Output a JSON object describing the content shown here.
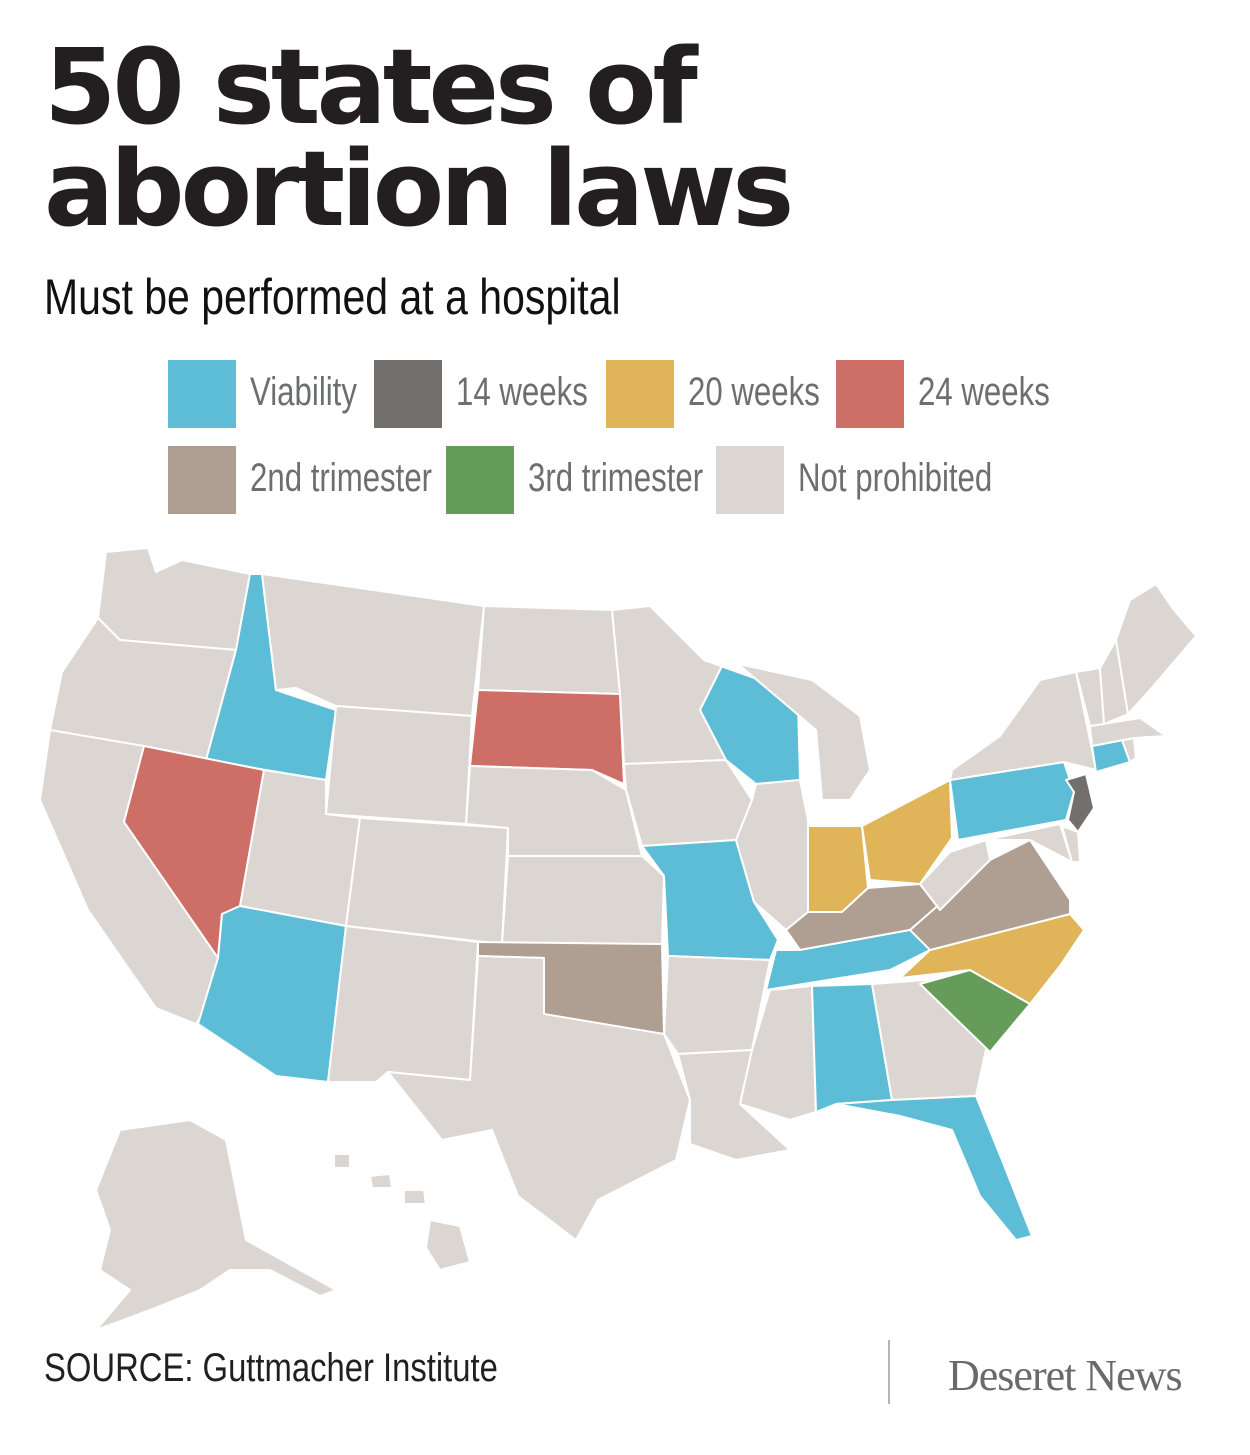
{
  "title_line1": "50 states of",
  "title_line2": "abortion laws",
  "subtitle": "Must be performed at a hospital",
  "legend": [
    {
      "label": "Viability",
      "color": "#5dbdd7"
    },
    {
      "label": "14 weeks",
      "color": "#736f6c"
    },
    {
      "label": "20 weeks",
      "color": "#e0b55a"
    },
    {
      "label": "24 weeks",
      "color": "#cd6e67"
    },
    {
      "label": "2nd trimester",
      "color": "#ae9f92"
    },
    {
      "label": "3rd trimester",
      "color": "#669c5a"
    },
    {
      "label": "Not prohibited",
      "color": "#dcd6d2"
    }
  ],
  "map_data": {
    "viability": [
      "Idaho",
      "Arizona",
      "Wisconsin",
      "Missouri",
      "Tennessee",
      "Alabama",
      "Florida",
      "Pennsylvania",
      "Connecticut"
    ],
    "14_weeks": [
      "New Jersey"
    ],
    "20_weeks": [
      "Indiana",
      "Ohio",
      "North Carolina"
    ],
    "24_weeks": [
      "Nevada",
      "South Dakota"
    ],
    "2nd_trimester": [
      "Oklahoma",
      "Kentucky",
      "Virginia"
    ],
    "3rd_trimester": [
      "South Carolina"
    ],
    "not_prohibited": [
      "all other states"
    ]
  },
  "source": "SOURCE: Guttmacher Institute",
  "brand": "Deseret News"
}
